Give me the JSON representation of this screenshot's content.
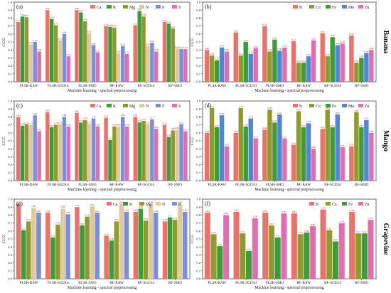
{
  "figure": {
    "xlabel": "Machine learning - spectral preprocessing",
    "ylabel": "CCC",
    "row_labels": [
      "Banana",
      "Mango",
      "Grapevine"
    ],
    "categories": [
      "PLSR-RAW",
      "PLSR-SGD1d",
      "PLSR-SMO",
      "RF-RAW",
      "RF-SGD1d",
      "RF-SMO"
    ]
  },
  "colors": {
    "Ca": "#e8736a",
    "K": "#3f9a3a",
    "Mg": "#8f9a2c",
    "N": "#e0c9a0",
    "P": "#7a8fd8",
    "S": "#e06fb0",
    "B": "#e8736a",
    "Cu": "#8f9a2c",
    "Fe": "#3f9a3a",
    "Mn": "#4f86d6",
    "Zn": "#e06fb0"
  },
  "chart_data": [
    {
      "panel": "a",
      "type": "bar",
      "categories": [
        "PLSR-RAW",
        "PLSR-SGD1d",
        "PLSR-SMO",
        "RF-RAW",
        "RF-SGD1d",
        "RF-SMO"
      ],
      "series": [
        {
          "name": "Ca",
          "values": [
            0.75,
            0.9,
            0.9,
            0.7,
            0.71,
            0.75
          ]
        },
        {
          "name": "K",
          "values": [
            0.82,
            0.79,
            0.87,
            0.69,
            0.89,
            0.73
          ]
        },
        {
          "name": "Mg",
          "values": [
            0.81,
            0.71,
            0.76,
            0.68,
            0.82,
            0.67
          ]
        },
        {
          "name": "N",
          "values": [
            0.47,
            0.52,
            0.61,
            0.36,
            0.45,
            0.42
          ]
        },
        {
          "name": "P",
          "values": [
            0.5,
            0.6,
            0.46,
            0.45,
            0.49,
            0.41
          ]
        },
        {
          "name": "S",
          "values": [
            0.38,
            0.32,
            0.37,
            0.35,
            0.38,
            0.41
          ]
        }
      ],
      "ylim": [
        0,
        1.0
      ],
      "ytick_step": 0.1,
      "legend": "top-right"
    },
    {
      "panel": "b",
      "type": "bar",
      "categories": [
        "PLSR-RAW",
        "PLSR-SGD1d",
        "PLSR-SMO",
        "RF-RAW",
        "RF-SGD1d",
        "RF-SMO"
      ],
      "series": [
        {
          "name": "B",
          "values": [
            0.4,
            0.62,
            0.7,
            0.51,
            0.61,
            0.58
          ]
        },
        {
          "name": "Cu",
          "values": [
            0.33,
            0.33,
            0.38,
            0.24,
            0.32,
            0.24
          ]
        },
        {
          "name": "Fe",
          "values": [
            0.27,
            0.5,
            0.53,
            0.24,
            0.56,
            0.3
          ]
        },
        {
          "name": "Mn",
          "values": [
            0.43,
            0.35,
            0.39,
            0.32,
            0.46,
            0.36
          ]
        },
        {
          "name": "Zn",
          "values": [
            0.38,
            0.42,
            0.43,
            0.52,
            0.48,
            0.4
          ]
        }
      ],
      "ylim": [
        0,
        1.0
      ],
      "ytick_step": 0.1,
      "legend": "top-right"
    },
    {
      "panel": "c",
      "type": "bar",
      "categories": [
        "PLSR-RAW",
        "PLSR-SGD1d",
        "PLSR-SMO",
        "RF-RAW",
        "RF-SGD1d",
        "RF-SMO"
      ],
      "series": [
        {
          "name": "Ca",
          "values": [
            0.8,
            0.86,
            0.85,
            0.79,
            0.8,
            0.7
          ]
        },
        {
          "name": "K",
          "values": [
            0.69,
            0.67,
            0.73,
            0.51,
            0.73,
            0.55
          ]
        },
        {
          "name": "Mg",
          "values": [
            0.71,
            0.7,
            0.76,
            0.68,
            0.75,
            0.63
          ]
        },
        {
          "name": "N",
          "values": [
            0.7,
            0.71,
            0.71,
            0.68,
            0.71,
            0.64
          ]
        },
        {
          "name": "P",
          "values": [
            0.82,
            0.8,
            0.78,
            0.8,
            0.77,
            0.71
          ]
        },
        {
          "name": "S",
          "values": [
            0.62,
            0.68,
            0.68,
            0.68,
            0.65,
            0.62
          ]
        }
      ],
      "ylim": [
        0,
        1.0
      ],
      "ytick_step": 0.1,
      "legend": "top-right"
    },
    {
      "panel": "d",
      "type": "bar",
      "categories": [
        "PLSR-RAW",
        "PLSR-SGD1d",
        "PLSR-SMO",
        "RF-RAW",
        "RF-SGD1d",
        "RF-SMO"
      ],
      "series": [
        {
          "name": "B",
          "values": [
            0.6,
            0.6,
            0.64,
            0.45,
            0.65,
            0.43
          ]
        },
        {
          "name": "Cu",
          "values": [
            0.91,
            0.91,
            0.89,
            0.87,
            0.89,
            0.86
          ]
        },
        {
          "name": "Fe",
          "values": [
            0.67,
            0.68,
            0.73,
            0.67,
            0.67,
            0.67
          ]
        },
        {
          "name": "Mn",
          "values": [
            0.82,
            0.78,
            0.83,
            0.72,
            0.83,
            0.76
          ]
        },
        {
          "name": "Zn",
          "values": [
            0.43,
            0.53,
            0.53,
            0.4,
            0.42,
            0.6
          ]
        }
      ],
      "ylim": [
        0,
        1.0
      ],
      "ytick_step": 0.1,
      "legend": "top-right"
    },
    {
      "panel": "e",
      "type": "bar",
      "categories": [
        "PLSR-RAW",
        "PLSR-SGD1d",
        "PLSR-SMO",
        "RF-RAW",
        "RF-SGD1d",
        "RF-SMO"
      ],
      "series": [
        {
          "name": "Ca",
          "values": [
            0.94,
            0.83,
            0.9,
            0.54,
            0.84,
            0.72
          ]
        },
        {
          "name": "K",
          "values": [
            0.61,
            0.52,
            0.67,
            0.48,
            0.88,
            0.77
          ]
        },
        {
          "name": "Mg",
          "values": [
            0.72,
            0.68,
            0.78,
            0.72,
            0.73,
            0.74
          ]
        },
        {
          "name": "N",
          "values": [
            0.89,
            0.88,
            0.91,
            0.94,
            0.94,
            0.94
          ]
        },
        {
          "name": "P",
          "values": [
            0.83,
            0.81,
            0.83,
            0.84,
            0.83,
            0.84
          ]
        }
      ],
      "ylim": [
        0,
        1.0
      ],
      "ytick_step": 0.1,
      "legend": "top-right"
    },
    {
      "panel": "f",
      "type": "bar",
      "categories": [
        "PLSR-RAW",
        "PLSR-SGD1d",
        "PLSR-SMO",
        "RF-RAW",
        "RF-SGD1d",
        "RF-SMO"
      ],
      "series": [
        {
          "name": "B",
          "values": [
            0.83,
            0.84,
            0.83,
            0.82,
            0.87,
            0.84
          ]
        },
        {
          "name": "Cu",
          "values": [
            0.56,
            0.57,
            0.67,
            0.56,
            0.61,
            0.57
          ]
        },
        {
          "name": "Fe",
          "values": [
            0.41,
            0.35,
            0.52,
            0.58,
            0.47,
            0.57
          ]
        },
        {
          "name": "Zn",
          "values": [
            0.8,
            0.76,
            0.82,
            0.66,
            0.7,
            0.74
          ]
        }
      ],
      "ylim": [
        0,
        1.0
      ],
      "ytick_step": 0.1,
      "legend": "top-right"
    }
  ]
}
